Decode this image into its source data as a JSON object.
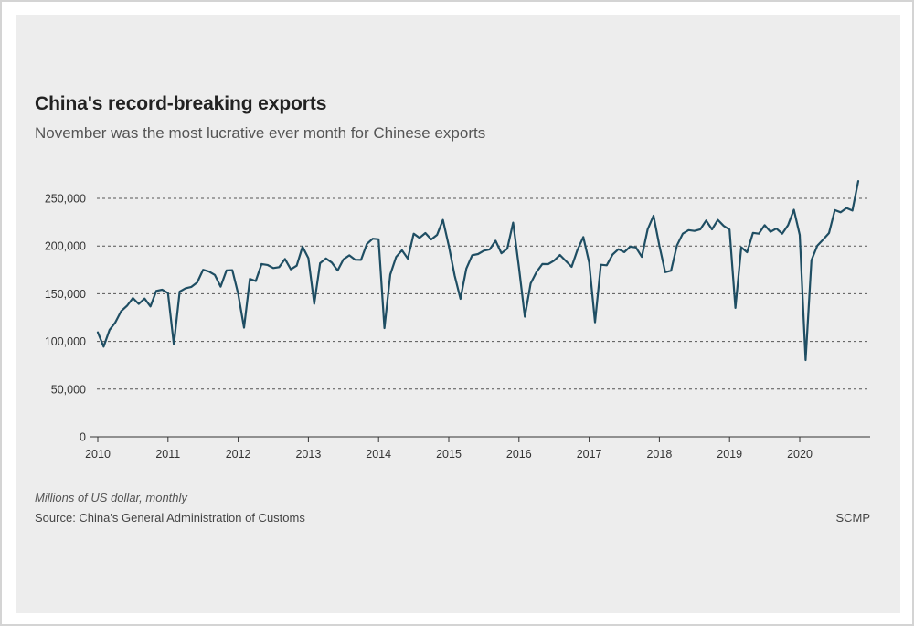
{
  "header": {
    "title": "China's record-breaking exports",
    "subtitle": "November was the most lucrative ever month for Chinese exports"
  },
  "footer": {
    "units": "Millions of US dollar, monthly",
    "source": "Source: China's General Administration of Customs",
    "brand": "SCMP"
  },
  "colors": {
    "line": "#1f4e63",
    "grid": "#555555",
    "background": "#ededed"
  },
  "chart_data": {
    "type": "line",
    "title": "China's record-breaking exports",
    "subtitle": "November was the most lucrative ever month for Chinese exports",
    "xlabel": "",
    "ylabel": "",
    "x_start": "2010-01",
    "x_ticks": [
      "2010",
      "2011",
      "2012",
      "2013",
      "2014",
      "2015",
      "2016",
      "2017",
      "2018",
      "2019",
      "2020"
    ],
    "y_ticks": [
      0,
      50000,
      100000,
      150000,
      200000,
      250000
    ],
    "y_tick_labels": [
      "0",
      "50,000",
      "100,000",
      "150,000",
      "200,000",
      "250,000"
    ],
    "ylim": [
      0,
      270000
    ],
    "grid": "horizontal dashed",
    "legend": "none",
    "series": [
      {
        "values": [
          109500,
          94500,
          112000,
          119900,
          131800,
          137400,
          145500,
          139300,
          144900,
          136700,
          153000,
          154200,
          150700,
          96800,
          152200,
          155700,
          157200,
          161900,
          175100,
          173300,
          169700,
          157500,
          174400,
          174700,
          149900,
          114500,
          165600,
          163300,
          181100,
          180200,
          176900,
          177900,
          186400,
          175600,
          179400,
          199200,
          187300,
          139400,
          182000,
          187000,
          182700,
          174300,
          186000,
          190200,
          185600,
          185400,
          202200,
          207700,
          207100,
          114000,
          170100,
          188500,
          195500,
          186800,
          212900,
          208500,
          213600,
          206900,
          211700,
          227400,
          200300,
          169200,
          144600,
          176300,
          190300,
          191600,
          195100,
          196500,
          205600,
          192400,
          197200,
          224500,
          177400,
          126000,
          160800,
          172800,
          181100,
          181000,
          184700,
          190600,
          184400,
          178200,
          196000,
          209400,
          182800,
          120100,
          180400,
          179800,
          191000,
          196600,
          193600,
          199300,
          198500,
          188600,
          217400,
          231800,
          200500,
          172600,
          174100,
          200500,
          212900,
          216700,
          215800,
          217500,
          226700,
          217400,
          227400,
          221100,
          217200,
          135200,
          198700,
          193500,
          213800,
          212900,
          221800,
          214800,
          218300,
          212900,
          221800,
          238000,
          211600,
          80500,
          185100,
          200300,
          206800,
          213600,
          237600,
          235300,
          239800,
          237200,
          268100
        ]
      }
    ]
  }
}
